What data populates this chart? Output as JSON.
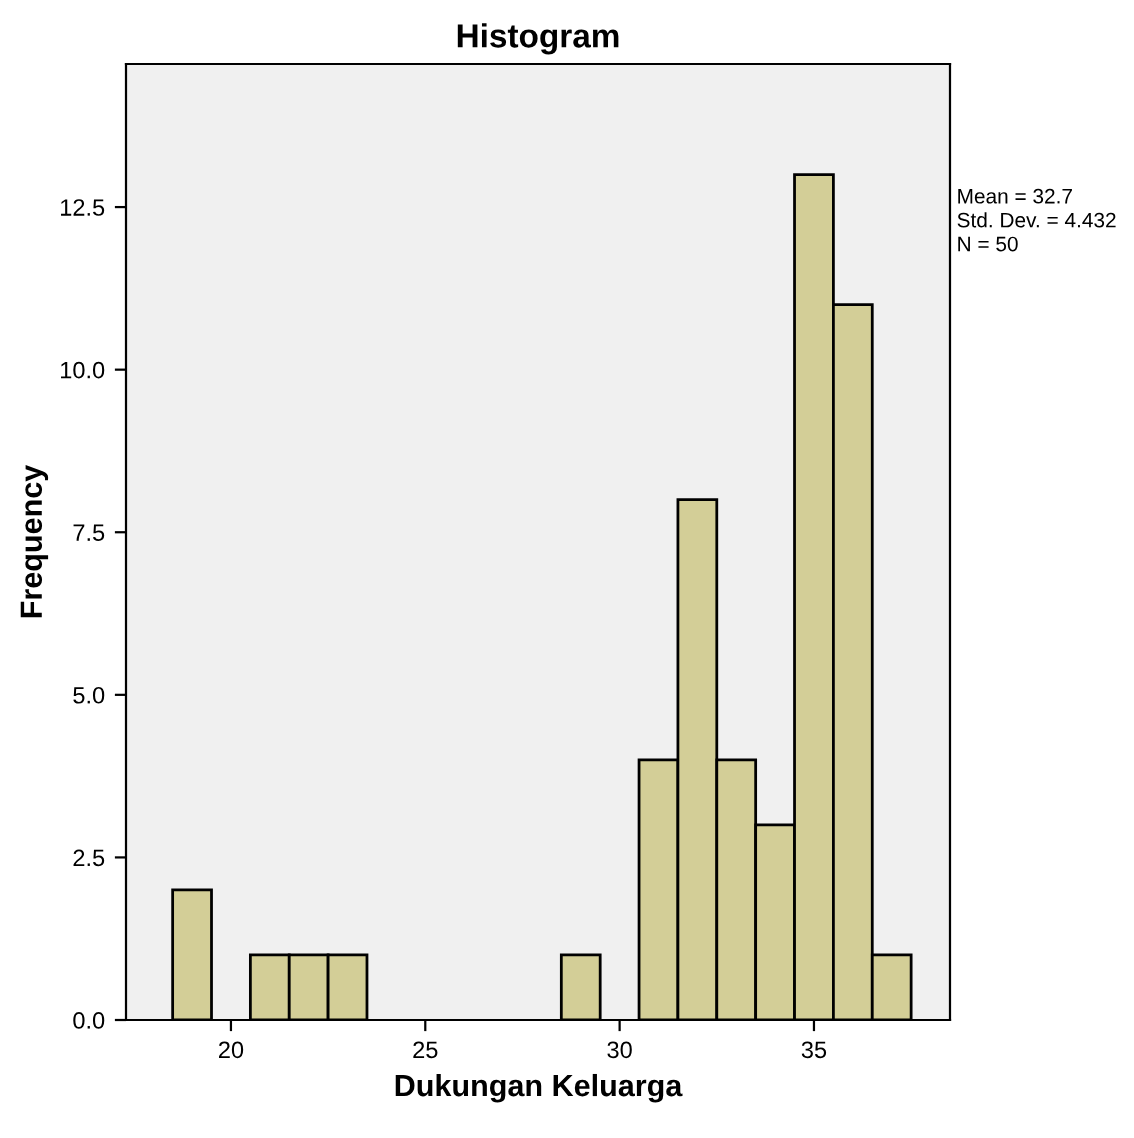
{
  "chart_data": {
    "type": "histogram",
    "title": "Histogram",
    "xlabel": "Dukungan Keluarga",
    "ylabel": "Frequency",
    "bins": [
      18.5,
      19.5,
      20.5,
      21.5,
      22.5,
      23.5,
      24.5,
      25.5,
      26.5,
      27.5,
      28.5,
      29.5,
      30.5,
      31.5,
      32.5,
      33.5,
      34.5,
      35.5,
      36.5,
      37.5
    ],
    "values": [
      2,
      0,
      1,
      1,
      1,
      0,
      0,
      0,
      0,
      0,
      1,
      0,
      4,
      8,
      4,
      3,
      13,
      11,
      1
    ],
    "color": "#d3ce97",
    "xlim": [
      17.3,
      38.5
    ],
    "xticks": [
      20,
      25,
      30,
      35
    ],
    "ylim": [
      0,
      14.7
    ],
    "yticks": [
      {
        "value": 0,
        "label": "0.0"
      },
      {
        "value": 2.5,
        "label": "2.5"
      },
      {
        "value": 5,
        "label": "5.0"
      },
      {
        "value": 7.5,
        "label": "7.5"
      },
      {
        "value": 10,
        "label": "10.0"
      },
      {
        "value": 12.5,
        "label": "12.5"
      }
    ],
    "grid": false,
    "legend": false,
    "annotations": [
      "Mean = 32.7",
      "Std. Dev. = 4.432",
      "N = 50"
    ]
  }
}
